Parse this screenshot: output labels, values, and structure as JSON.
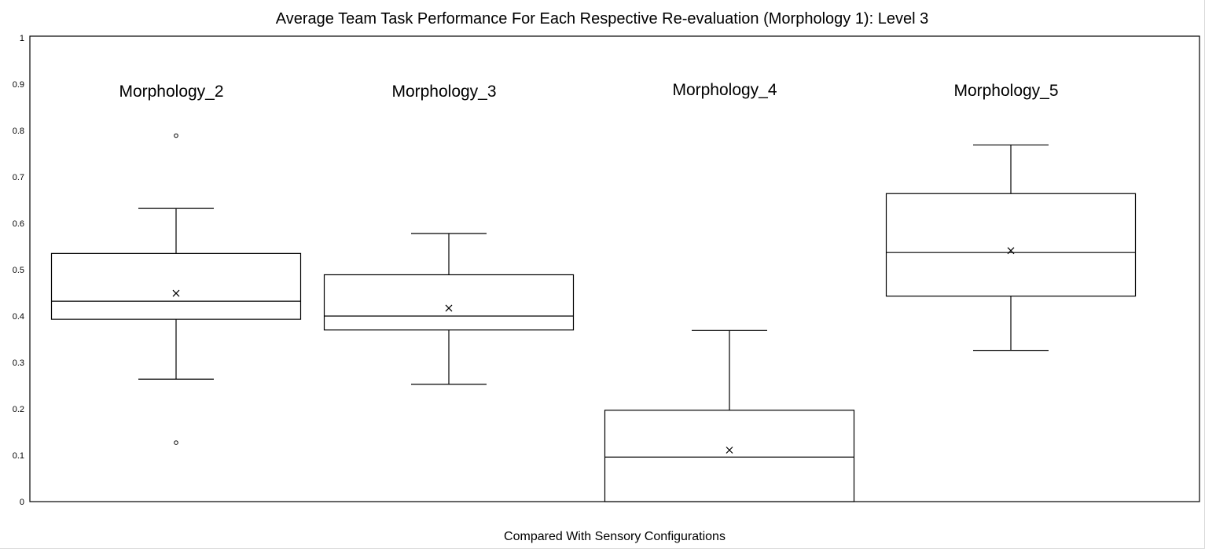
{
  "chart_data": {
    "type": "box",
    "title": "Average Team Task Performance For Each Respective Re-evaluation (Morphology 1):  Level 3",
    "xlabel": "Compared With Sensory Configurations",
    "ylabel": "",
    "ylim": [
      0,
      1
    ],
    "yticks": [
      "0",
      "0.1",
      "0.2",
      "0.3",
      "0.4",
      "0.5",
      "0.6",
      "0.7",
      "0.8",
      "0.9",
      "1"
    ],
    "grid": false,
    "categories": [
      "Morphology_2",
      "Morphology_3",
      "Morphology_4",
      "Morphology_5"
    ],
    "boxes": [
      {
        "category": "Morphology_2",
        "min": 0.264,
        "q1": 0.393,
        "median": 0.432,
        "q3": 0.535,
        "max": 0.632,
        "mean": 0.449,
        "outliers": [
          0.789,
          0.127
        ]
      },
      {
        "category": "Morphology_3",
        "min": 0.253,
        "q1": 0.37,
        "median": 0.4,
        "q3": 0.489,
        "max": 0.578,
        "mean": 0.417,
        "outliers": []
      },
      {
        "category": "Morphology_4",
        "min": 0.0,
        "q1": 0.0,
        "median": 0.096,
        "q3": 0.197,
        "max": 0.369,
        "mean": 0.111,
        "outliers": []
      },
      {
        "category": "Morphology_5",
        "min": 0.326,
        "q1": 0.443,
        "median": 0.537,
        "q3": 0.664,
        "max": 0.769,
        "mean": 0.541,
        "outliers": []
      }
    ]
  }
}
